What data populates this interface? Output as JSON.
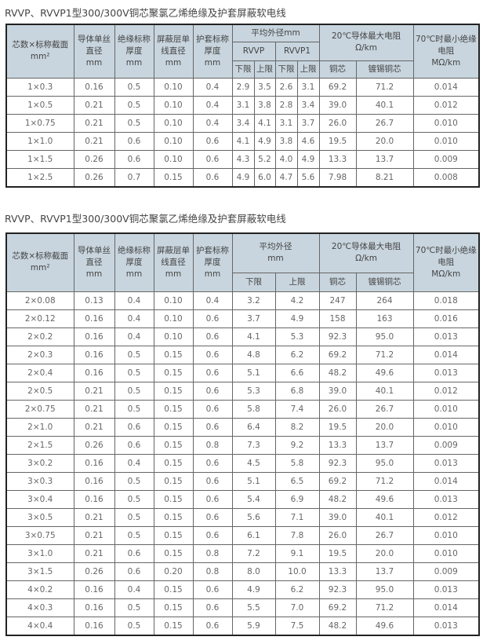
{
  "table1": {
    "title": "RVVP、RVVP1型300/300V铜芯聚氯乙烯绝缘及护套屏蔽软电线",
    "headers": {
      "core": "芯数×标称截面",
      "core_unit": "mm²",
      "wire": "导体单丝直径",
      "wire_unit": "mm",
      "ins": "绝缘标称厚度",
      "ins_unit": "mm",
      "shield": "屏蔽层单线直径",
      "shield_unit": "mm",
      "sheath": "护套标称厚度",
      "sheath_unit": "mm",
      "od": "平均外径mm",
      "rvvp": "RVVP",
      "rvvp1": "RVVP1",
      "lower": "下限",
      "upper": "上限",
      "res": "20℃导体最大电阻",
      "res_unit": "Ω/km",
      "cu": "铜芯",
      "tin": "镀锡铜芯",
      "ir": "70℃时最小绝缘电阻",
      "ir_unit": "MΩ/km"
    },
    "rows": [
      [
        "1×0.3",
        "0.16",
        "0.5",
        "0.10",
        "0.4",
        "2.9",
        "3.5",
        "2.6",
        "3.1",
        "69.2",
        "71.2",
        "0.014"
      ],
      [
        "1×0.5",
        "0.21",
        "0.5",
        "0.10",
        "0.4",
        "3.1",
        "3.8",
        "2.8",
        "3.4",
        "39.0",
        "40.1",
        "0.012"
      ],
      [
        "1×0.75",
        "0.21",
        "0.5",
        "0.10",
        "0.4",
        "3.4",
        "4.1",
        "3.1",
        "3.7",
        "26.0",
        "26.7",
        "0.010"
      ],
      [
        "1×1.0",
        "0.21",
        "0.6",
        "0.10",
        "0.6",
        "4.1",
        "4.9",
        "3.8",
        "4.6",
        "19.5",
        "20.0",
        "0.010"
      ],
      [
        "1×1.5",
        "0.26",
        "0.6",
        "0.10",
        "0.6",
        "4.3",
        "5.2",
        "4.0",
        "4.9",
        "13.3",
        "13.7",
        "0.009"
      ],
      [
        "1×2.5",
        "0.26",
        "0.7",
        "0.15",
        "0.6",
        "4.9",
        "6.0",
        "4.7",
        "5.6",
        "7.98",
        "8.21",
        "0.008"
      ]
    ]
  },
  "table2": {
    "title": "RVVP、RVVP1型300/300V铜芯聚氯乙烯绝缘及护套屏蔽软电线",
    "headers": {
      "core": "芯数×标称截面",
      "core_unit": "mm²",
      "wire": "导体单丝直径",
      "wire_unit": "mm",
      "ins": "绝缘标称厚度",
      "ins_unit": "mm",
      "shield": "屏蔽层单线直径",
      "shield_unit": "mm",
      "sheath": "护套标称厚度",
      "sheath_unit": "mm",
      "od": "平均外径",
      "od_unit": "mm",
      "lower": "下限",
      "upper": "上限",
      "res": "20℃导体最大电阻",
      "res_unit": "Ω/km",
      "cu": "铜芯",
      "tin": "镀锡铜芯",
      "ir": "70℃时最小绝缘电阻",
      "ir_unit": "MΩ/km"
    },
    "rows": [
      [
        "2×0.08",
        "0.13",
        "0.4",
        "0.10",
        "0.4",
        "3.2",
        "4.2",
        "247",
        "264",
        "0.018"
      ],
      [
        "2×0.12",
        "0.16",
        "0.4",
        "0.10",
        "0.6",
        "3.7",
        "4.9",
        "158",
        "163",
        "0.016"
      ],
      [
        "2×0.2",
        "0.16",
        "0.4",
        "0.10",
        "0.6",
        "4.1",
        "5.3",
        "92.3",
        "95.0",
        "0.013"
      ],
      [
        "2×0.3",
        "0.16",
        "0.5",
        "0.15",
        "0.6",
        "4.8",
        "6.2",
        "69.2",
        "71.2",
        "0.014"
      ],
      [
        "2×0.4",
        "0.16",
        "0.5",
        "0.15",
        "0.6",
        "5.1",
        "6.6",
        "48.2",
        "49.6",
        "0.013"
      ],
      [
        "2×0.5",
        "0.21",
        "0.5",
        "0.15",
        "0.6",
        "5.3",
        "6.8",
        "39.0",
        "40.1",
        "0.012"
      ],
      [
        "2×0.75",
        "0.21",
        "0.5",
        "0.15",
        "0.6",
        "5.8",
        "7.4",
        "26.0",
        "26.7",
        "0.010"
      ],
      [
        "2×1.0",
        "0.21",
        "0.6",
        "0.15",
        "0.6",
        "6.4",
        "8.2",
        "19.5",
        "20.0",
        "0.010"
      ],
      [
        "2×1.5",
        "0.26",
        "0.6",
        "0.15",
        "0.8",
        "7.3",
        "9.2",
        "13.3",
        "13.7",
        "0.009"
      ],
      [
        "3×0.2",
        "0.16",
        "0.4",
        "0.15",
        "0.6",
        "4.5",
        "5.8",
        "92.3",
        "95.0",
        "0.013"
      ],
      [
        "3×0.3",
        "0.16",
        "0.5",
        "0.15",
        "0.6",
        "5.1",
        "6.5",
        "69.2",
        "71.2",
        "0.014"
      ],
      [
        "3×0.4",
        "0.16",
        "0.5",
        "0.15",
        "0.6",
        "5.4",
        "6.9",
        "48.2",
        "49.6",
        "0.013"
      ],
      [
        "3×0.5",
        "0.21",
        "0.5",
        "0.15",
        "0.6",
        "5.6",
        "7.1",
        "39.0",
        "40.1",
        "0.012"
      ],
      [
        "3×0.75",
        "0.21",
        "0.5",
        "0.15",
        "0.6",
        "6.1",
        "7.8",
        "26.0",
        "26.7",
        "0.010"
      ],
      [
        "3×1.0",
        "0.21",
        "0.6",
        "0.15",
        "0.8",
        "7.2",
        "9.1",
        "19.5",
        "20.0",
        "0.010"
      ],
      [
        "3×1.5",
        "0.26",
        "0.6",
        "0.20",
        "0.8",
        "8.0",
        "10.0",
        "13.3",
        "13.7",
        "0.009"
      ],
      [
        "4×0.2",
        "0.16",
        "0.4",
        "0.15",
        "0.6",
        "4.9",
        "6.2",
        "92.3",
        "95.0",
        "0.013"
      ],
      [
        "4×0.3",
        "0.16",
        "0.5",
        "0.15",
        "0.6",
        "5.5",
        "7.0",
        "69.2",
        "71.2",
        "0.014"
      ],
      [
        "4×0.4",
        "0.16",
        "0.5",
        "0.15",
        "0.6",
        "5.9",
        "7.5",
        "48.2",
        "49.6",
        "0.013"
      ]
    ]
  }
}
